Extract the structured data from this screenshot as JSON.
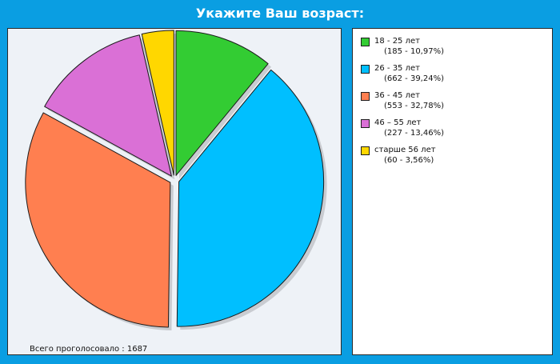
{
  "chart_data": {
    "type": "pie",
    "title": "Укажите Ваш возраст:",
    "slices": [
      {
        "label": "18 - 25 лет",
        "count": 185,
        "percent": 10.97,
        "percent_text": "10,97%",
        "color": "#33cc33"
      },
      {
        "label": "26 - 35 лет",
        "count": 662,
        "percent": 39.24,
        "percent_text": "39,24%",
        "color": "#00bfff"
      },
      {
        "label": "36 - 45 лет",
        "count": 553,
        "percent": 32.78,
        "percent_text": "32,78%",
        "color": "#ff7f50"
      },
      {
        "label": "46 – 55 лет",
        "count": 227,
        "percent": 13.46,
        "percent_text": "13,46%",
        "color": "#da70d6"
      },
      {
        "label": "старше 56 лет",
        "count": 60,
        "percent": 3.56,
        "percent_text": "3,56%",
        "color": "#ffd700"
      }
    ],
    "legend_position": "right"
  },
  "footer": {
    "total_label": "Всего проголосовало",
    "total_value": "1687"
  }
}
